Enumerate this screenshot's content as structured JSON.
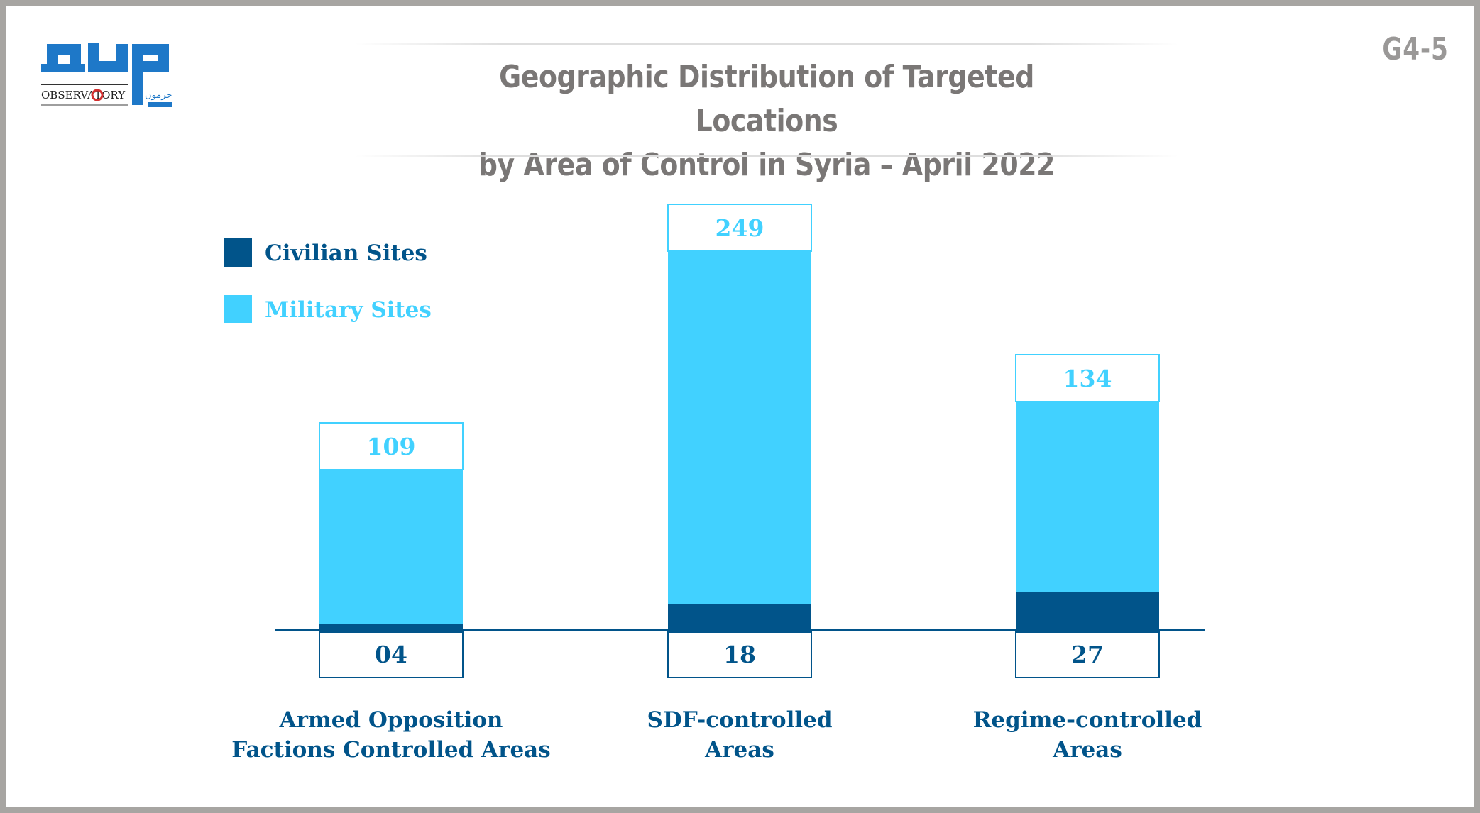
{
  "header": {
    "title_line1": "Geographic Distribution of Targeted Locations",
    "title_line2": "by Area of Control in Syria – April 2022",
    "code": "G4-5"
  },
  "logo": {
    "word": "OBSERVATORY",
    "arabic_name": "مرصد",
    "arabic_sub": "حرمون"
  },
  "colors": {
    "civilian": "#01548a",
    "military": "#41d1ff",
    "frame": "#a7a5a2",
    "title": "#7a7776"
  },
  "chart_data": {
    "type": "bar",
    "stacked": true,
    "categories": [
      [
        "Armed Opposition",
        "Factions Controlled Areas"
      ],
      [
        "SDF-controlled",
        "Areas"
      ],
      [
        "Regime-controlled",
        "Areas"
      ]
    ],
    "series": [
      {
        "name": "Civilian Sites",
        "values": [
          4,
          18,
          27
        ],
        "labels": [
          "04",
          "18",
          "27"
        ],
        "color": "#01548a"
      },
      {
        "name": "Military Sites",
        "values": [
          109,
          249,
          134
        ],
        "labels": [
          "109",
          "249",
          "134"
        ],
        "color": "#41d1ff"
      }
    ],
    "legend_position": "top-left",
    "ylim": [
      0,
      300
    ],
    "grid": false
  }
}
